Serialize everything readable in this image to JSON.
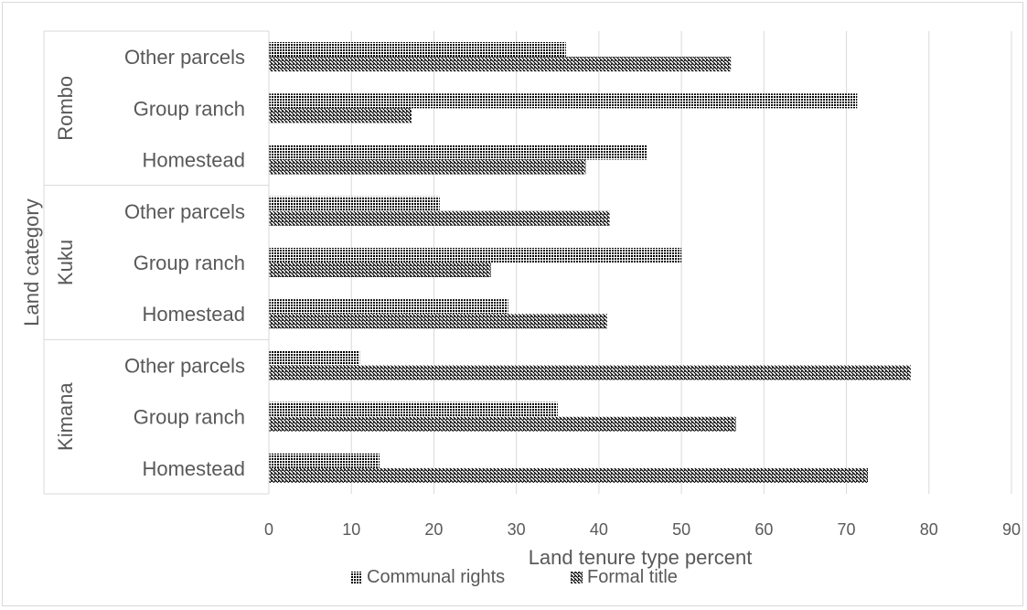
{
  "chart_data": {
    "type": "bar",
    "orientation": "horizontal",
    "title": "",
    "xlabel": "Land tenure type percent",
    "ylabel": "Land category",
    "xlim": [
      0,
      90
    ],
    "xticks": [
      0,
      10,
      20,
      30,
      40,
      50,
      60,
      70,
      80,
      90
    ],
    "grid": true,
    "legend_position": "bottom",
    "groups": [
      {
        "name": "Kimana",
        "categories": [
          "Homestead",
          "Group ranch",
          "Other parcels"
        ]
      },
      {
        "name": "Kuku",
        "categories": [
          "Homestead",
          "Group ranch",
          "Other parcels"
        ]
      },
      {
        "name": "Rombo",
        "categories": [
          "Homestead",
          "Group ranch",
          "Other parcels"
        ]
      }
    ],
    "series": [
      {
        "name": "Communal rights",
        "pattern": "dense-crosshatch",
        "color": "#000000",
        "values": [
          13.4,
          35.0,
          11.0,
          29.0,
          50.0,
          20.7,
          45.8,
          71.3,
          36.0
        ]
      },
      {
        "name": "Formal title",
        "pattern": "diagonal-hatch",
        "color": "#000000",
        "values": [
          72.6,
          56.6,
          77.8,
          41.0,
          26.9,
          41.3,
          38.4,
          17.3,
          56.0
        ]
      }
    ]
  }
}
